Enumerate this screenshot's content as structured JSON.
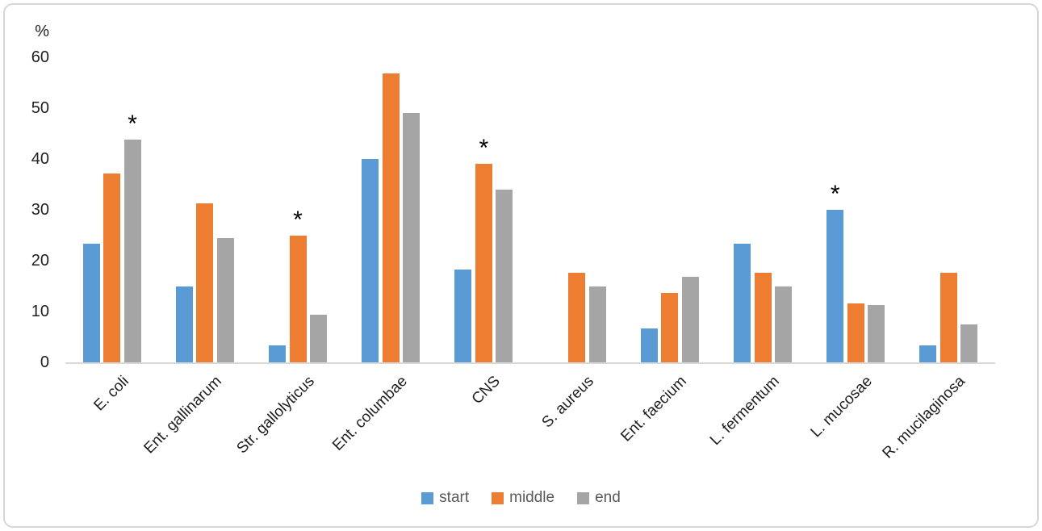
{
  "chart_data": {
    "type": "bar",
    "title": "",
    "ylabel": "%",
    "xlabel": "",
    "ylim": [
      0,
      60
    ],
    "yticks": [
      0,
      10,
      20,
      30,
      40,
      50,
      60
    ],
    "grid": false,
    "legend_position": "bottom",
    "categories": [
      "E. coli",
      "Ent. gallinarum",
      "Str. gallolyticus",
      "Ent. columbae",
      "CNS",
      "S. aureus",
      "Ent. faecium",
      "L. fermentum",
      "L. mucosae",
      "R. mucilaginosa"
    ],
    "series": [
      {
        "name": "start",
        "color": "#5B9BD5",
        "values": [
          23.3,
          15.0,
          3.3,
          40.0,
          18.3,
          0,
          6.7,
          23.3,
          30.0,
          3.3
        ]
      },
      {
        "name": "middle",
        "color": "#ED7D31",
        "values": [
          37.2,
          31.3,
          25.0,
          56.9,
          39.1,
          17.6,
          13.6,
          17.6,
          11.6,
          17.6
        ]
      },
      {
        "name": "end",
        "color": "#A5A5A5",
        "values": [
          43.8,
          24.4,
          9.3,
          49.0,
          33.9,
          15.0,
          16.9,
          15.0,
          11.2,
          7.4
        ]
      }
    ],
    "annotations": [
      {
        "category": "E. coli",
        "category_index": 0,
        "series": "end",
        "symbol": "*"
      },
      {
        "category": "Str. gallolyticus",
        "category_index": 2,
        "series": "middle",
        "symbol": "*"
      },
      {
        "category": "CNS",
        "category_index": 4,
        "series": "middle",
        "symbol": "*"
      },
      {
        "category": "L. mucosae",
        "category_index": 8,
        "series": "start",
        "symbol": "*"
      }
    ]
  },
  "colors": {
    "axis_line": "#d9d9d9",
    "axis_text": "#1f1f1f",
    "legend_text": "#595959",
    "frame_border": "#d6d6d6",
    "background": "#ffffff"
  }
}
